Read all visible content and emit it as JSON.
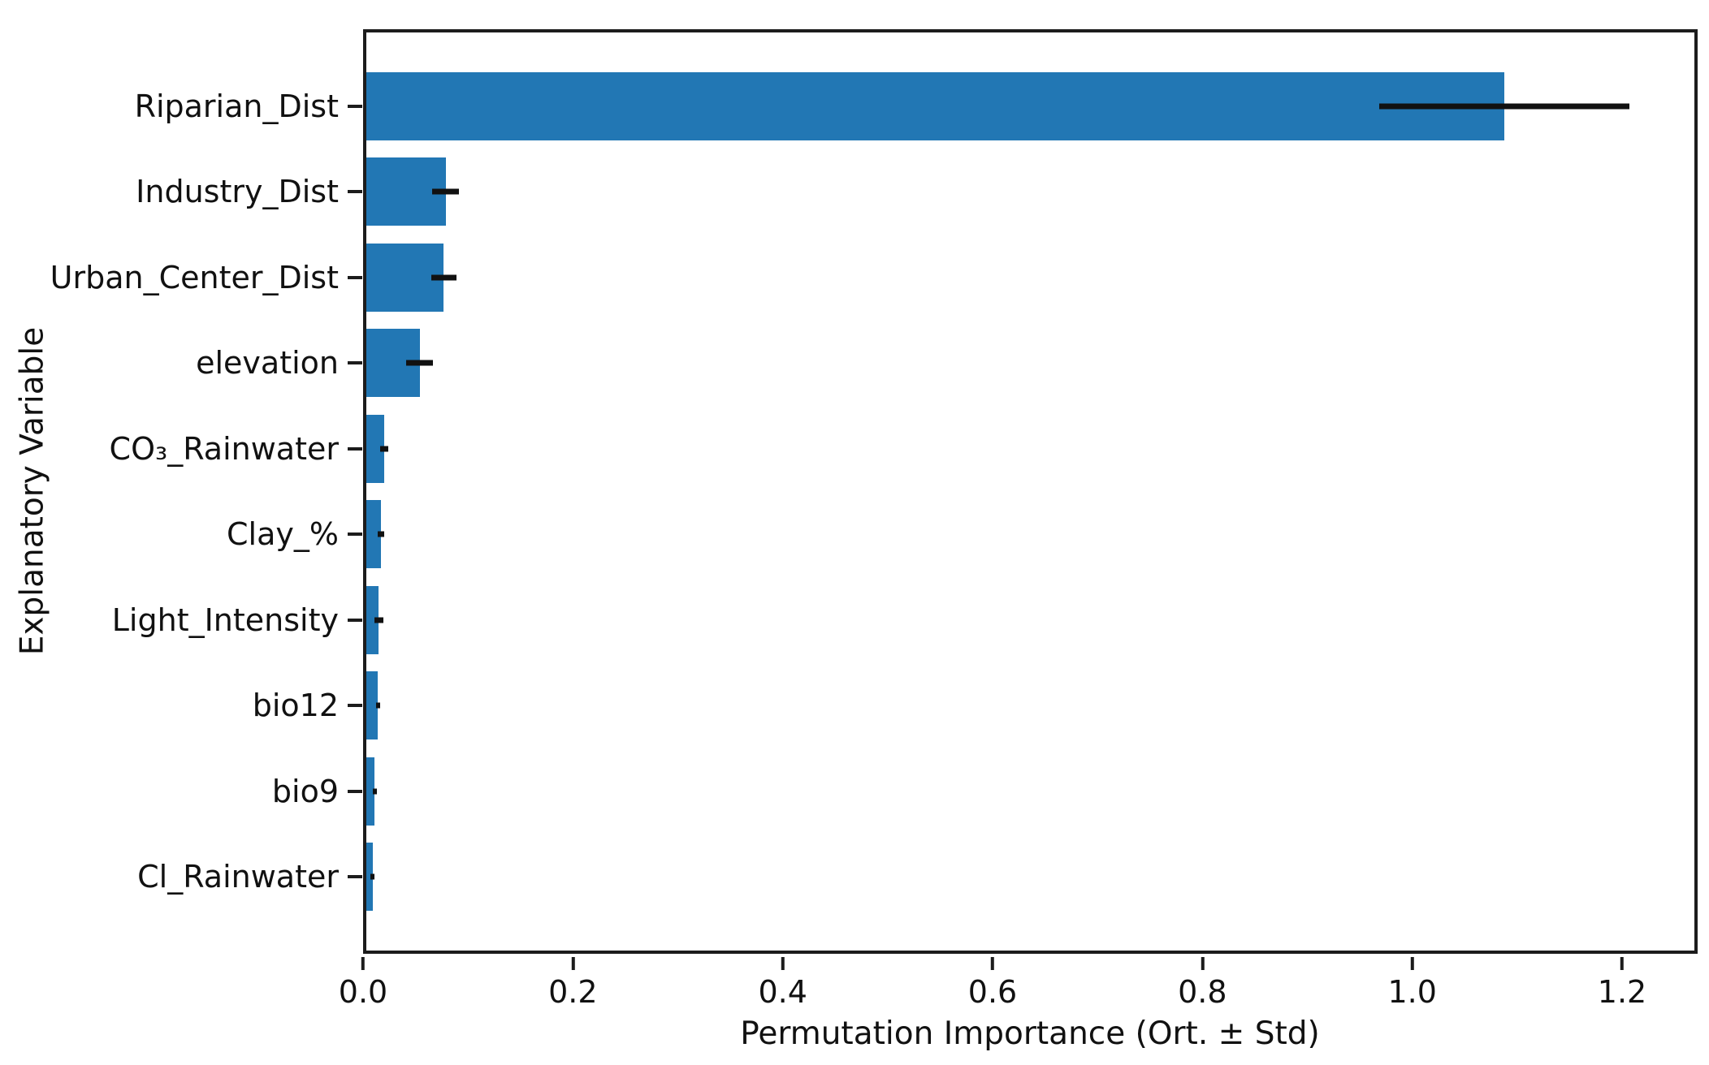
{
  "figure": {
    "background": "#ffffff"
  },
  "chart_data": {
    "type": "bar",
    "orientation": "horizontal",
    "title": "",
    "xlabel": "Permutation Importance (Ort. ± Std)",
    "ylabel": "Explanatory Variable",
    "categories": [
      "Riparian_Dist",
      "Industry_Dist",
      "Urban_Center_Dist",
      "elevation",
      "CO₃_Rainwater",
      "Clay_%",
      "Light_Intensity",
      "bio12",
      "bio9",
      "Cl_Rainwater"
    ],
    "values": [
      1.09,
      0.076,
      0.074,
      0.051,
      0.017,
      0.014,
      0.012,
      0.011,
      0.008,
      0.006
    ],
    "errors": [
      0.12,
      0.013,
      0.012,
      0.013,
      0.004,
      0.003,
      0.004,
      0.002,
      0.002,
      0.002
    ],
    "xlim": [
      0,
      1.272
    ],
    "xticks": [
      0,
      0.2,
      0.4,
      0.6,
      0.8,
      1.0,
      1.2
    ],
    "xtick_labels": [
      "0.0",
      "0.2",
      "0.4",
      "0.6",
      "0.8",
      "1.0",
      "1.2"
    ],
    "bar_color": "#2277b4",
    "error_bar_color": "#111111",
    "axis_color": "#1c1c1c",
    "grid": false,
    "legend": "none"
  }
}
